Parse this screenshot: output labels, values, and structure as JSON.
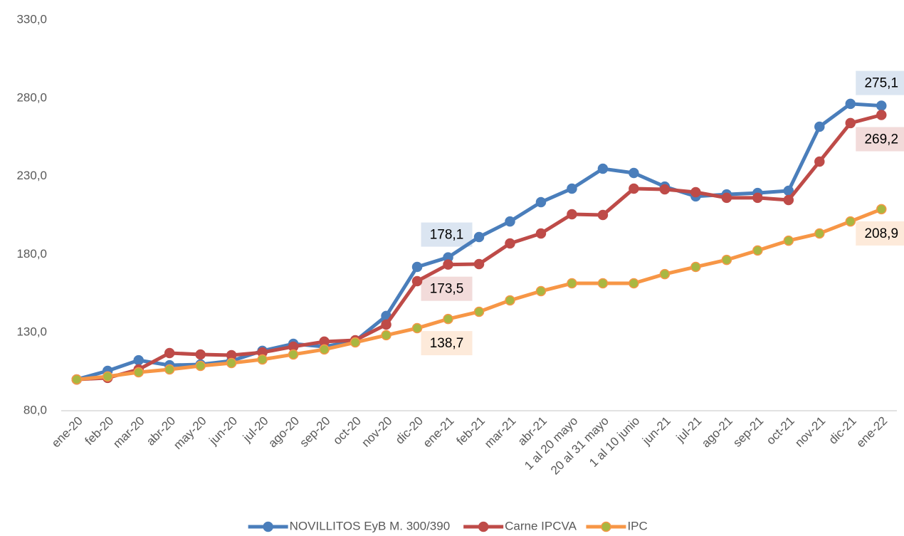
{
  "chart_data": {
    "type": "line",
    "categories": [
      "ene-20",
      "feb-20",
      "mar-20",
      "abr-20",
      "may-20",
      "jun-20",
      "jul-20",
      "ago-20",
      "sep-20",
      "oct-20",
      "nov-20",
      "dic-20",
      "ene-21",
      "feb-21",
      "mar-21",
      "abr-21",
      "1 al 20 mayo",
      "20 al 31 mayo",
      "1 al 10 junio",
      "jun-21",
      "jul-21",
      "ago-21",
      "sep-21",
      "oct-21",
      "nov-21",
      "dic-21",
      "ene-22"
    ],
    "series": [
      {
        "name": "NOVILLITOS EyB M. 300/390",
        "color": "#4a7ebb",
        "values": [
          100,
          105.5,
          112.3,
          109.1,
          109.6,
          111.9,
          118.3,
          122.8,
          121,
          124.6,
          140.6,
          172,
          178.1,
          191.1,
          201.1,
          213.4,
          222.1,
          234.8,
          232.1,
          223.4,
          217.1,
          218.4,
          219.3,
          220.7,
          261.7,
          276.3,
          275.1
        ],
        "value_labels": [
          null,
          null,
          null,
          null,
          null,
          null,
          null,
          null,
          null,
          null,
          null,
          null,
          "178,1",
          null,
          null,
          null,
          null,
          null,
          null,
          null,
          null,
          null,
          null,
          null,
          null,
          null,
          "275,1"
        ]
      },
      {
        "name": "Carne IPCVA",
        "color": "#be4b48",
        "values": [
          100,
          101,
          106.4,
          116.9,
          116,
          115.5,
          117.3,
          121,
          124.2,
          125.1,
          135.1,
          162.9,
          173.5,
          173.8,
          187,
          193.4,
          205.7,
          205.2,
          222.1,
          221.6,
          219.8,
          216.2,
          216.2,
          214.8,
          239.4,
          264,
          269.2
        ],
        "value_labels": [
          null,
          null,
          null,
          null,
          null,
          null,
          null,
          null,
          null,
          null,
          null,
          null,
          "173,5",
          null,
          null,
          null,
          null,
          null,
          null,
          null,
          null,
          null,
          null,
          null,
          null,
          null,
          "269,2"
        ]
      },
      {
        "name": "IPC",
        "color": "#f79646",
        "marker_color": "#a9b741",
        "values": [
          100,
          101.9,
          104.6,
          106.4,
          108.7,
          110.5,
          112.8,
          116,
          119.2,
          123.7,
          128.3,
          132.8,
          138.7,
          143.3,
          150.6,
          156.5,
          161.5,
          161.5,
          161.5,
          167.4,
          172,
          176.5,
          182.5,
          188.8,
          193.4,
          201.1,
          208.9
        ],
        "value_labels": [
          null,
          null,
          null,
          null,
          null,
          null,
          null,
          null,
          null,
          null,
          null,
          null,
          "138,7",
          null,
          null,
          null,
          null,
          null,
          null,
          null,
          null,
          null,
          null,
          null,
          null,
          null,
          "208,9"
        ]
      }
    ],
    "ylim": [
      80,
      330
    ],
    "yticks": [
      {
        "value": 80,
        "label": "80,0"
      },
      {
        "value": 130,
        "label": "130,0"
      },
      {
        "value": 180,
        "label": "180,0"
      },
      {
        "value": 230,
        "label": "230,0"
      },
      {
        "value": 280,
        "label": "280,0"
      },
      {
        "value": 330,
        "label": "330,0"
      }
    ],
    "grid": false,
    "legend": "bottom"
  }
}
